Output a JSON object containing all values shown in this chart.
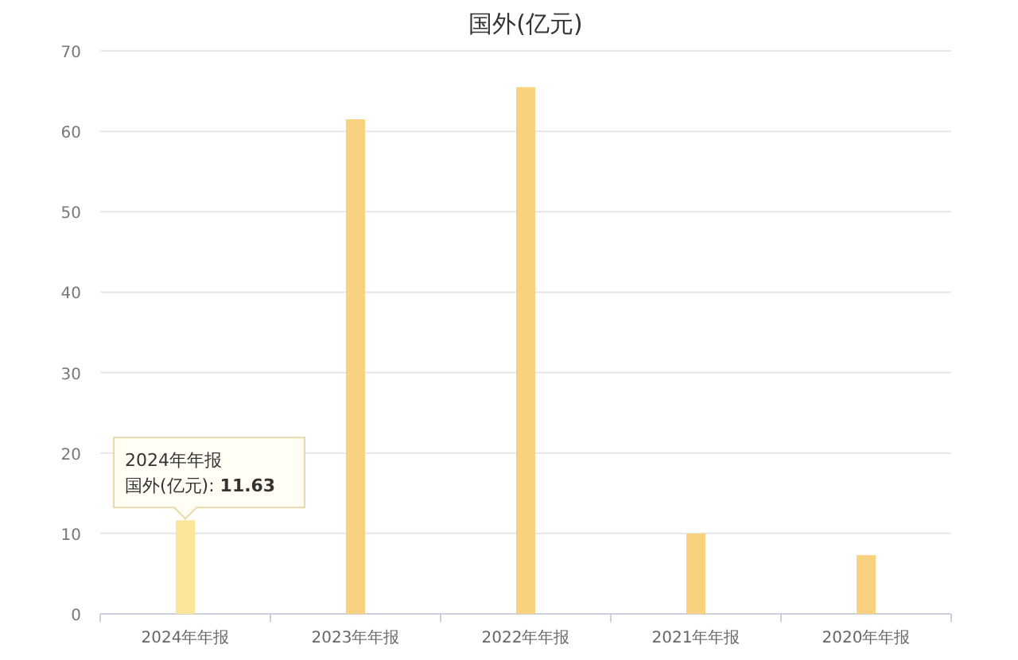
{
  "chart_data": {
    "type": "bar",
    "title": "国外(亿元)",
    "categories": [
      "2024年年报",
      "2023年年报",
      "2022年年报",
      "2021年年报",
      "2020年年报"
    ],
    "values": [
      11.63,
      61.5,
      65.5,
      10.0,
      7.3
    ],
    "colors": [
      "#fde59a",
      "#f9d27f",
      "#f9d27f",
      "#f9d27f",
      "#f9d27f"
    ],
    "ylim": [
      0,
      70
    ],
    "yticks": [
      0,
      10,
      20,
      30,
      40,
      50,
      60,
      70
    ],
    "grid": "y",
    "annotations": [
      {
        "text": "2024年年报",
        "x": "2024年年报",
        "y": 11.63
      },
      {
        "text": "国外(亿元): **11.63**",
        "x": "2024年年报",
        "y": 11.63
      }
    ]
  }
}
